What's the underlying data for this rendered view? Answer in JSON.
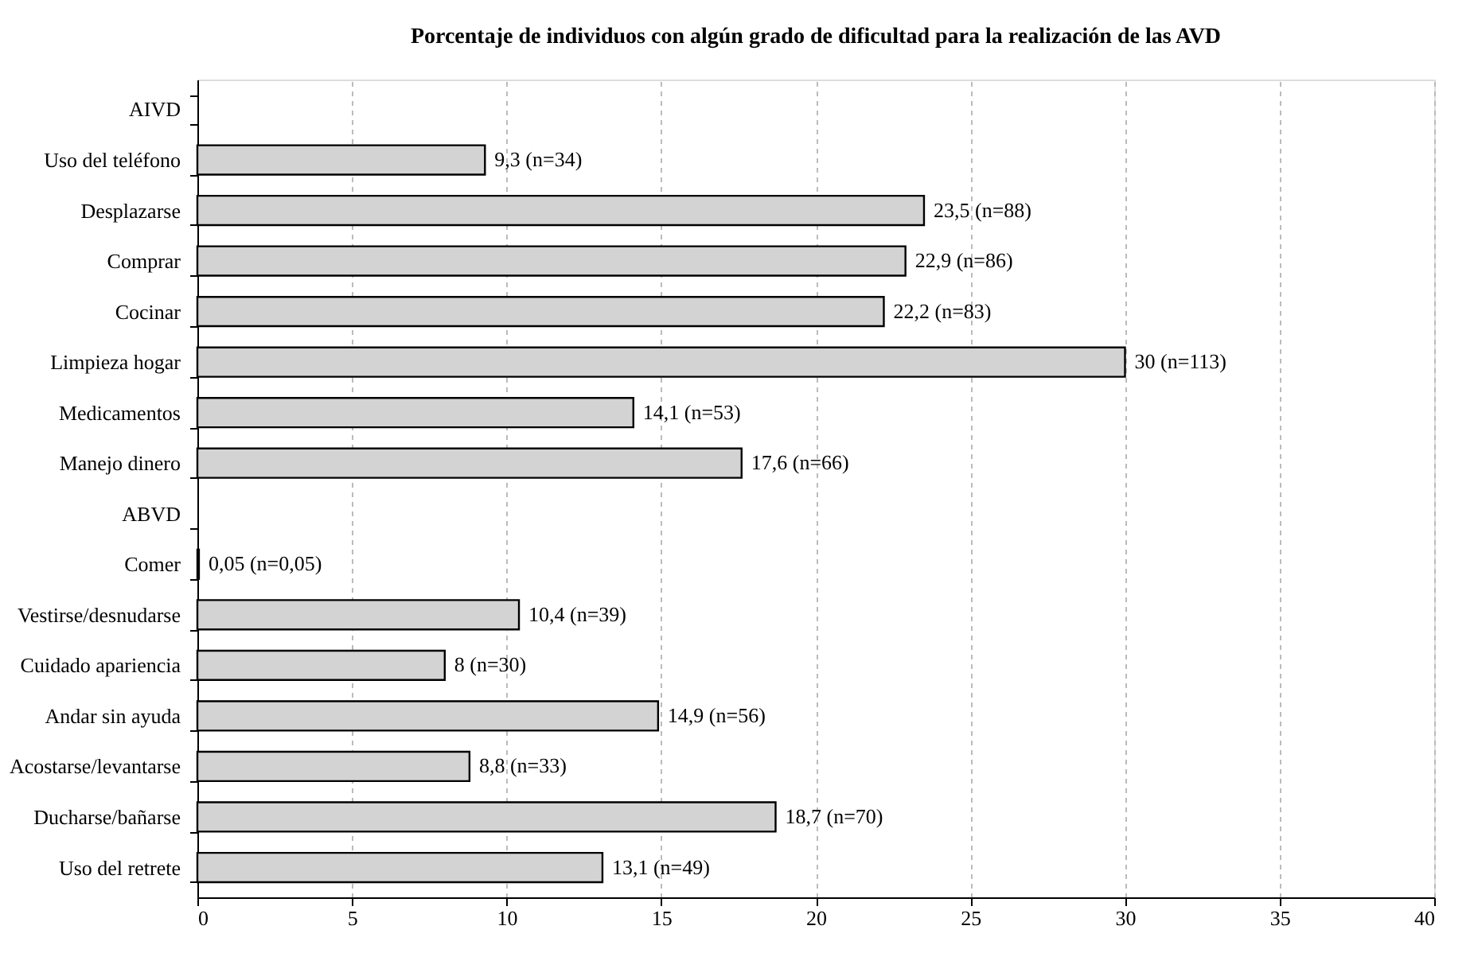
{
  "chart_data": {
    "type": "bar",
    "orientation": "horizontal",
    "title": "Porcentaje de individuos con algún grado de dificultad para la realización de las AVD",
    "categories": [
      "AIVD",
      "Uso del teléfono",
      "Desplazarse",
      "Comprar",
      "Cocinar",
      "Limpieza hogar",
      "Medicamentos",
      "Manejo dinero",
      "ABVD",
      "Comer",
      "Vestirse/desnudarse",
      "Cuidado apariencia",
      "Andar sin ayuda",
      "Acostarse/levantarse",
      "Ducharse/bañarse",
      "Uso del retrete"
    ],
    "values": [
      null,
      9.3,
      23.5,
      22.9,
      22.2,
      30,
      14.1,
      17.6,
      null,
      0.05,
      10.4,
      8,
      14.9,
      8.8,
      18.7,
      13.1
    ],
    "value_labels": [
      null,
      "9,3 (n=34)",
      "23,5 (n=88)",
      "22,9 (n=86)",
      "22,2 (n=83)",
      "30 (n=113)",
      "14,1 (n=53)",
      "17,6 (n=66)",
      null,
      "0,05 (n=0,05)",
      "10,4 (n=39)",
      "8 (n=30)",
      "14,9 (n=56)",
      "8,8 (n=33)",
      "18,7 (n=70)",
      "13,1 (n=49)"
    ],
    "color": "#d3d3d3",
    "xlim": [
      0,
      40
    ],
    "xticks": [
      0,
      5,
      10,
      15,
      20,
      25,
      30,
      35,
      40
    ],
    "grid": "x"
  }
}
